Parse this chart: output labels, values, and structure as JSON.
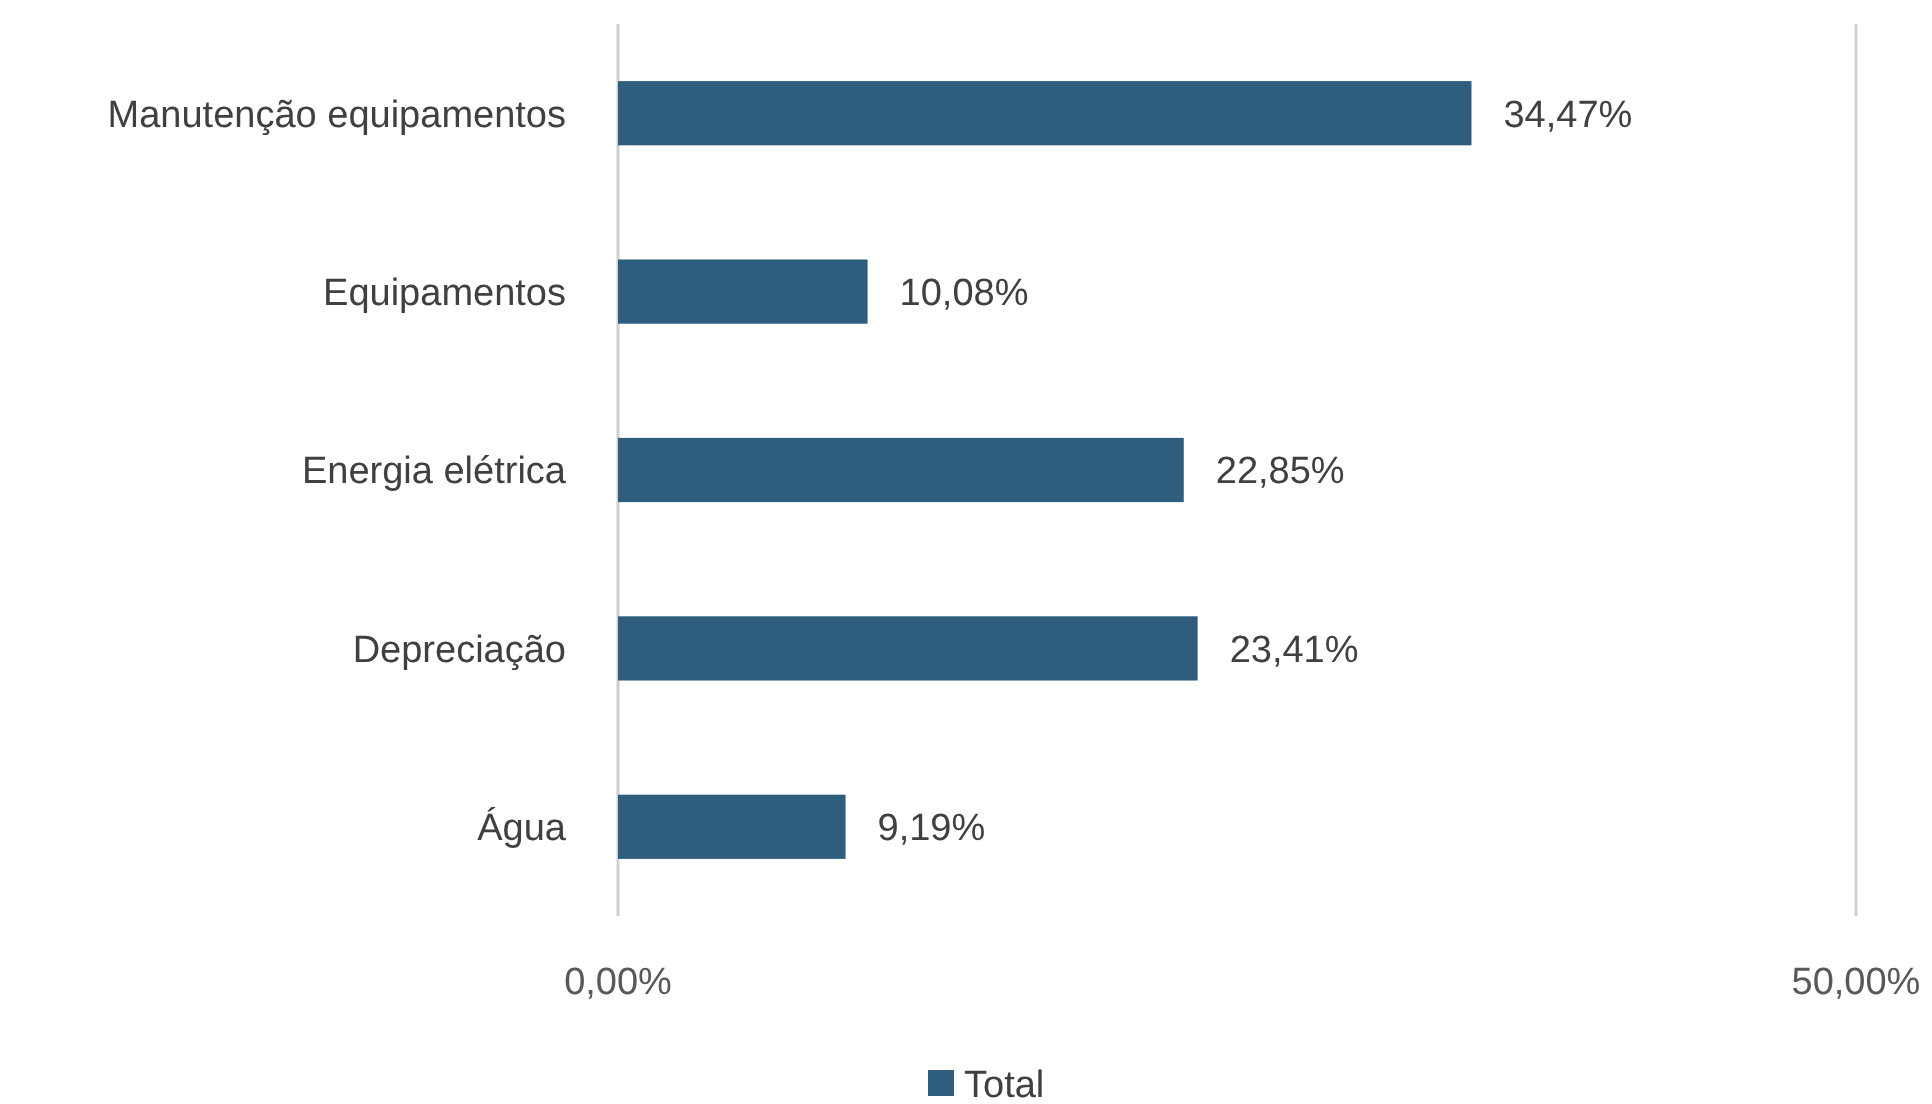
{
  "chart_data": {
    "type": "bar",
    "orientation": "horizontal",
    "categories": [
      "Manutenção equipamentos",
      "Equipamentos",
      "Energia elétrica",
      "Depreciação",
      "Água"
    ],
    "series": [
      {
        "name": "Total",
        "color": "#2e5d7d",
        "values": [
          34.47,
          10.08,
          22.85,
          23.41,
          9.19
        ]
      }
    ],
    "value_labels": [
      "34,47%",
      "10,08%",
      "22,85%",
      "23,41%",
      "9,19%"
    ],
    "xlim": [
      0,
      50
    ],
    "xticks": [
      {
        "value": 0,
        "label": "0,00%"
      },
      {
        "value": 50,
        "label": "50,00%"
      }
    ],
    "legend": "bottom"
  }
}
